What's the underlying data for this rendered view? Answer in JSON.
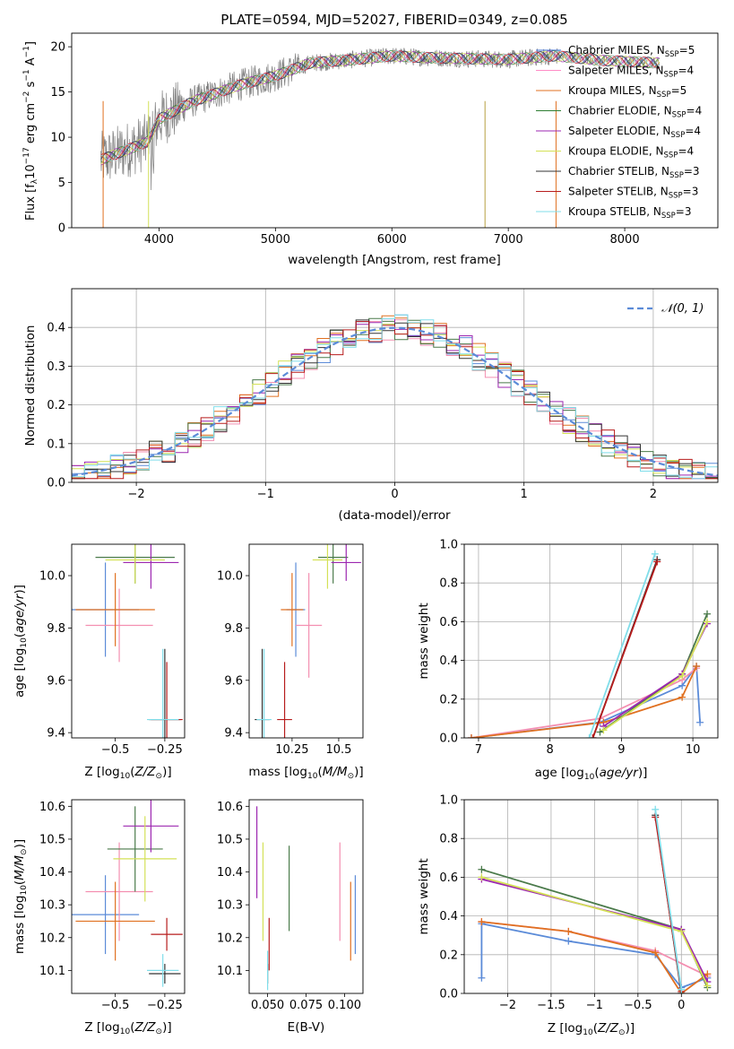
{
  "chart_data": [
    {
      "id": "spectrum",
      "type": "line",
      "title": "PLATE=0594, MJD=52027, FIBERID=0349, z=0.085",
      "xlabel": "wavelength [Angstrom, rest frame]",
      "ylabel": "Flux [f_λ10^-17 erg cm^-2 s^-1 A^-1]",
      "xlim": [
        3250,
        8800
      ],
      "ylim": [
        0,
        21.5
      ],
      "xticks": [
        4000,
        5000,
        6000,
        7000,
        8000
      ],
      "yticks": [
        0,
        5,
        10,
        15,
        20
      ],
      "legend_position": "right",
      "legend": [
        {
          "label": "Chabrier MILES, N_SSP=5",
          "color": "#3b6fd6"
        },
        {
          "label": "Salpeter MILES, N_SSP=4",
          "color": "#ff8cc6"
        },
        {
          "label": "Kroupa MILES, N_SSP=5",
          "color": "#e07020"
        },
        {
          "label": "Chabrier ELODIE, N_SSP=4",
          "color": "#2e7d32"
        },
        {
          "label": "Salpeter ELODIE, N_SSP=4",
          "color": "#9c27b0"
        },
        {
          "label": "Kroupa ELODIE, N_SSP=4",
          "color": "#d4e157"
        },
        {
          "label": "Chabrier STELIB, N_SSP=3",
          "color": "#333333"
        },
        {
          "label": "Salpeter STELIB, N_SSP=3",
          "color": "#b71c1c"
        },
        {
          "label": "Kroupa STELIB, N_SSP=3",
          "color": "#80deea"
        }
      ],
      "continuum": {
        "x": [
          3500,
          3700,
          3900,
          4000,
          4300,
          4700,
          5000,
          5300,
          5600,
          6000,
          6300,
          6600,
          7000,
          7400,
          7800,
          8300
        ],
        "y": [
          7.5,
          8.5,
          9.5,
          12.0,
          14.0,
          15.8,
          16.8,
          18.2,
          18.5,
          19.0,
          18.8,
          18.7,
          18.6,
          19.0,
          18.5,
          18.2
        ]
      }
    },
    {
      "id": "residuals",
      "type": "line",
      "xlabel": "(data-model)/error",
      "ylabel": "Normed distribution",
      "xlim": [
        -2.5,
        2.5
      ],
      "ylim": [
        0,
        0.5
      ],
      "xticks": [
        -2,
        -1,
        0,
        1,
        2
      ],
      "yticks": [
        0.0,
        0.1,
        0.2,
        0.3,
        0.4
      ],
      "grid": true,
      "legend_position": "top-right",
      "gaussian_label": "𝒩(0, 1)",
      "gaussian_color": "#5b8bd8"
    },
    {
      "id": "age_vs_Z",
      "type": "scatter",
      "xlabel": "Z [log10(Z/Z⊙)]",
      "ylabel": "age [log10(age/yr)]",
      "xlim": [
        -0.72,
        -0.15
      ],
      "ylim": [
        9.38,
        10.12
      ],
      "xticks": [
        -0.5,
        -0.25
      ],
      "yticks": [
        9.4,
        9.6,
        9.8,
        10.0
      ],
      "points": [
        {
          "x": -0.55,
          "y": 9.87,
          "xerr": 0.17,
          "yerr": 0.18,
          "color": "#5b8bd8"
        },
        {
          "x": -0.48,
          "y": 9.81,
          "xerr": 0.17,
          "yerr": 0.14,
          "color": "#f48fb1"
        },
        {
          "x": -0.5,
          "y": 9.87,
          "xerr": 0.2,
          "yerr": 0.14,
          "color": "#e07020"
        },
        {
          "x": -0.4,
          "y": 10.07,
          "xerr": 0.2,
          "yerr": 0.1,
          "color": "#4a7a4a"
        },
        {
          "x": -0.32,
          "y": 10.05,
          "xerr": 0.14,
          "yerr": 0.1,
          "color": "#9c27b0"
        },
        {
          "x": -0.4,
          "y": 10.06,
          "xerr": 0.15,
          "yerr": 0.09,
          "color": "#d4e157"
        },
        {
          "x": -0.25,
          "y": 9.45,
          "xerr": 0.08,
          "yerr": 0.27,
          "color": "#333333"
        },
        {
          "x": -0.24,
          "y": 9.45,
          "xerr": 0.08,
          "yerr": 0.22,
          "color": "#b71c1c"
        },
        {
          "x": -0.26,
          "y": 9.45,
          "xerr": 0.08,
          "yerr": 0.27,
          "color": "#80deea"
        }
      ]
    },
    {
      "id": "age_vs_mass",
      "type": "scatter",
      "xlabel": "mass [log10(M/M⊙)]",
      "xlim": [
        10.02,
        10.63
      ],
      "ylim": [
        9.38,
        10.12
      ],
      "xticks": [
        10.25,
        10.5
      ],
      "yticks": [
        9.4,
        9.6,
        9.8,
        10.0
      ],
      "points": [
        {
          "x": 10.27,
          "y": 9.87,
          "xerr": 0.05,
          "yerr": 0.18,
          "color": "#5b8bd8"
        },
        {
          "x": 10.34,
          "y": 9.81,
          "xerr": 0.07,
          "yerr": 0.2,
          "color": "#f48fb1"
        },
        {
          "x": 10.25,
          "y": 9.87,
          "xerr": 0.06,
          "yerr": 0.14,
          "color": "#e07020"
        },
        {
          "x": 10.47,
          "y": 10.07,
          "xerr": 0.08,
          "yerr": 0.1,
          "color": "#4a7a4a"
        },
        {
          "x": 10.54,
          "y": 10.05,
          "xerr": 0.08,
          "yerr": 0.07,
          "color": "#9c27b0"
        },
        {
          "x": 10.44,
          "y": 10.06,
          "xerr": 0.08,
          "yerr": 0.11,
          "color": "#d4e157"
        },
        {
          "x": 10.09,
          "y": 9.45,
          "xerr": 0.04,
          "yerr": 0.27,
          "color": "#333333"
        },
        {
          "x": 10.21,
          "y": 9.45,
          "xerr": 0.04,
          "yerr": 0.22,
          "color": "#b71c1c"
        },
        {
          "x": 10.1,
          "y": 9.45,
          "xerr": 0.04,
          "yerr": 0.27,
          "color": "#80deea"
        }
      ]
    },
    {
      "id": "massweight_vs_age",
      "type": "line",
      "xlabel": "age [log10(age/yr)]",
      "ylabel": "mass weight",
      "xlim": [
        6.8,
        10.35
      ],
      "ylim": [
        0,
        1.0
      ],
      "xticks": [
        7,
        8,
        9,
        10
      ],
      "yticks": [
        0.0,
        0.2,
        0.4,
        0.6,
        0.8,
        1.0
      ],
      "grid": true,
      "series": [
        {
          "color": "#5b8bd8",
          "x": [
            6.9,
            8.7,
            9.85,
            10.05,
            10.1
          ],
          "y": [
            0.0,
            0.08,
            0.27,
            0.37,
            0.08
          ]
        },
        {
          "color": "#f48fb1",
          "x": [
            6.9,
            8.7,
            9.85,
            10.05
          ],
          "y": [
            0.0,
            0.1,
            0.3,
            0.36
          ]
        },
        {
          "color": "#e07020",
          "x": [
            6.9,
            8.75,
            9.85,
            10.05
          ],
          "y": [
            0.0,
            0.08,
            0.21,
            0.37
          ]
        },
        {
          "color": "#4a7a4a",
          "x": [
            8.7,
            9.85,
            10.2
          ],
          "y": [
            0.03,
            0.33,
            0.64
          ]
        },
        {
          "color": "#9c27b0",
          "x": [
            8.75,
            9.85,
            10.2
          ],
          "y": [
            0.06,
            0.33,
            0.59
          ]
        },
        {
          "color": "#d4e157",
          "x": [
            8.75,
            9.85,
            10.2
          ],
          "y": [
            0.04,
            0.32,
            0.6
          ]
        },
        {
          "color": "#333333",
          "x": [
            8.6,
            9.5
          ],
          "y": [
            0.0,
            0.92
          ]
        },
        {
          "color": "#b71c1c",
          "x": [
            8.6,
            9.5
          ],
          "y": [
            0.0,
            0.91
          ]
        },
        {
          "color": "#80deea",
          "x": [
            8.55,
            9.47
          ],
          "y": [
            0.0,
            0.95
          ]
        }
      ]
    },
    {
      "id": "mass_vs_Z",
      "type": "scatter",
      "xlabel": "Z [log10(Z/Z⊙)]",
      "ylabel": "mass [log10(M/M⊙)]",
      "xlim": [
        -0.72,
        -0.15
      ],
      "ylim": [
        10.03,
        10.62
      ],
      "xticks": [
        -0.5,
        -0.25
      ],
      "yticks": [
        10.1,
        10.2,
        10.3,
        10.4,
        10.5,
        10.6
      ],
      "points": [
        {
          "x": -0.55,
          "y": 10.27,
          "xerr": 0.17,
          "yerr": 0.12,
          "color": "#5b8bd8"
        },
        {
          "x": -0.48,
          "y": 10.34,
          "xerr": 0.17,
          "yerr": 0.15,
          "color": "#f48fb1"
        },
        {
          "x": -0.5,
          "y": 10.25,
          "xerr": 0.2,
          "yerr": 0.12,
          "color": "#e07020"
        },
        {
          "x": -0.4,
          "y": 10.47,
          "xerr": 0.14,
          "yerr": 0.13,
          "color": "#4a7a4a"
        },
        {
          "x": -0.32,
          "y": 10.54,
          "xerr": 0.14,
          "yerr": 0.08,
          "color": "#9c27b0"
        },
        {
          "x": -0.35,
          "y": 10.44,
          "xerr": 0.16,
          "yerr": 0.13,
          "color": "#d4e157"
        },
        {
          "x": -0.25,
          "y": 10.09,
          "xerr": 0.08,
          "yerr": 0.03,
          "color": "#333333"
        },
        {
          "x": -0.24,
          "y": 10.21,
          "xerr": 0.08,
          "yerr": 0.05,
          "color": "#b71c1c"
        },
        {
          "x": -0.26,
          "y": 10.1,
          "xerr": 0.08,
          "yerr": 0.05,
          "color": "#80deea"
        }
      ]
    },
    {
      "id": "mass_vs_ebv",
      "type": "scatter",
      "xlabel": "E(B-V)",
      "xlim": [
        0.038,
        0.112
      ],
      "ylim": [
        10.03,
        10.62
      ],
      "xticks": [
        0.05,
        0.075,
        0.1
      ],
      "xticklabels": [
        "0.050",
        "0.075",
        "0.100"
      ],
      "yticks": [
        10.1,
        10.2,
        10.3,
        10.4,
        10.5,
        10.6
      ],
      "points": [
        {
          "x": 0.107,
          "y": 10.27,
          "yerr": 0.12,
          "color": "#5b8bd8"
        },
        {
          "x": 0.097,
          "y": 10.34,
          "yerr": 0.15,
          "color": "#f48fb1"
        },
        {
          "x": 0.104,
          "y": 10.25,
          "yerr": 0.12,
          "color": "#e07020"
        },
        {
          "x": 0.064,
          "y": 10.35,
          "yerr": 0.13,
          "color": "#4a7a4a"
        },
        {
          "x": 0.043,
          "y": 10.46,
          "yerr": 0.14,
          "color": "#9c27b0"
        },
        {
          "x": 0.047,
          "y": 10.34,
          "yerr": 0.15,
          "color": "#d4e157"
        },
        {
          "x": 0.05,
          "y": 10.09,
          "yerr": 0.03,
          "color": "#333333"
        },
        {
          "x": 0.051,
          "y": 10.18,
          "yerr": 0.08,
          "color": "#b71c1c"
        },
        {
          "x": 0.05,
          "y": 10.1,
          "yerr": 0.06,
          "color": "#80deea"
        }
      ]
    },
    {
      "id": "massweight_vs_Z",
      "type": "line",
      "xlabel": "Z [log10(Z/Z⊙)]",
      "ylabel": "mass weight",
      "xlim": [
        -2.5,
        0.42
      ],
      "ylim": [
        0,
        1.0
      ],
      "xticks": [
        -2.0,
        -1.5,
        -1.0,
        -0.5,
        0.0
      ],
      "yticks": [
        0.0,
        0.2,
        0.4,
        0.6,
        0.8,
        1.0
      ],
      "grid": true,
      "series": [
        {
          "color": "#5b8bd8",
          "x": [
            -2.3,
            -2.3,
            -1.3,
            -0.3,
            0.0,
            0.3
          ],
          "y": [
            0.08,
            0.36,
            0.27,
            0.2,
            0.03,
            0.08
          ]
        },
        {
          "color": "#f48fb1",
          "x": [
            -2.3,
            -1.3,
            -0.3,
            0.3
          ],
          "y": [
            0.37,
            0.32,
            0.22,
            0.09
          ]
        },
        {
          "color": "#e07020",
          "x": [
            -2.3,
            -1.3,
            -0.3,
            0.0,
            0.3
          ],
          "y": [
            0.37,
            0.32,
            0.21,
            0.0,
            0.1
          ]
        },
        {
          "color": "#4a7a4a",
          "x": [
            -2.3,
            0.0,
            0.3
          ],
          "y": [
            0.64,
            0.33,
            0.03
          ]
        },
        {
          "color": "#9c27b0",
          "x": [
            -2.3,
            0.0,
            0.3
          ],
          "y": [
            0.59,
            0.33,
            0.06
          ]
        },
        {
          "color": "#d4e157",
          "x": [
            -2.3,
            0.0,
            0.3
          ],
          "y": [
            0.6,
            0.32,
            0.04
          ]
        },
        {
          "color": "#333333",
          "x": [
            -0.3,
            0.0
          ],
          "y": [
            0.92,
            0.0
          ]
        },
        {
          "color": "#b71c1c",
          "x": [
            -0.3,
            0.0
          ],
          "y": [
            0.91,
            0.01
          ]
        },
        {
          "color": "#80deea",
          "x": [
            -0.3,
            0.0
          ],
          "y": [
            0.95,
            0.02
          ]
        }
      ]
    }
  ]
}
